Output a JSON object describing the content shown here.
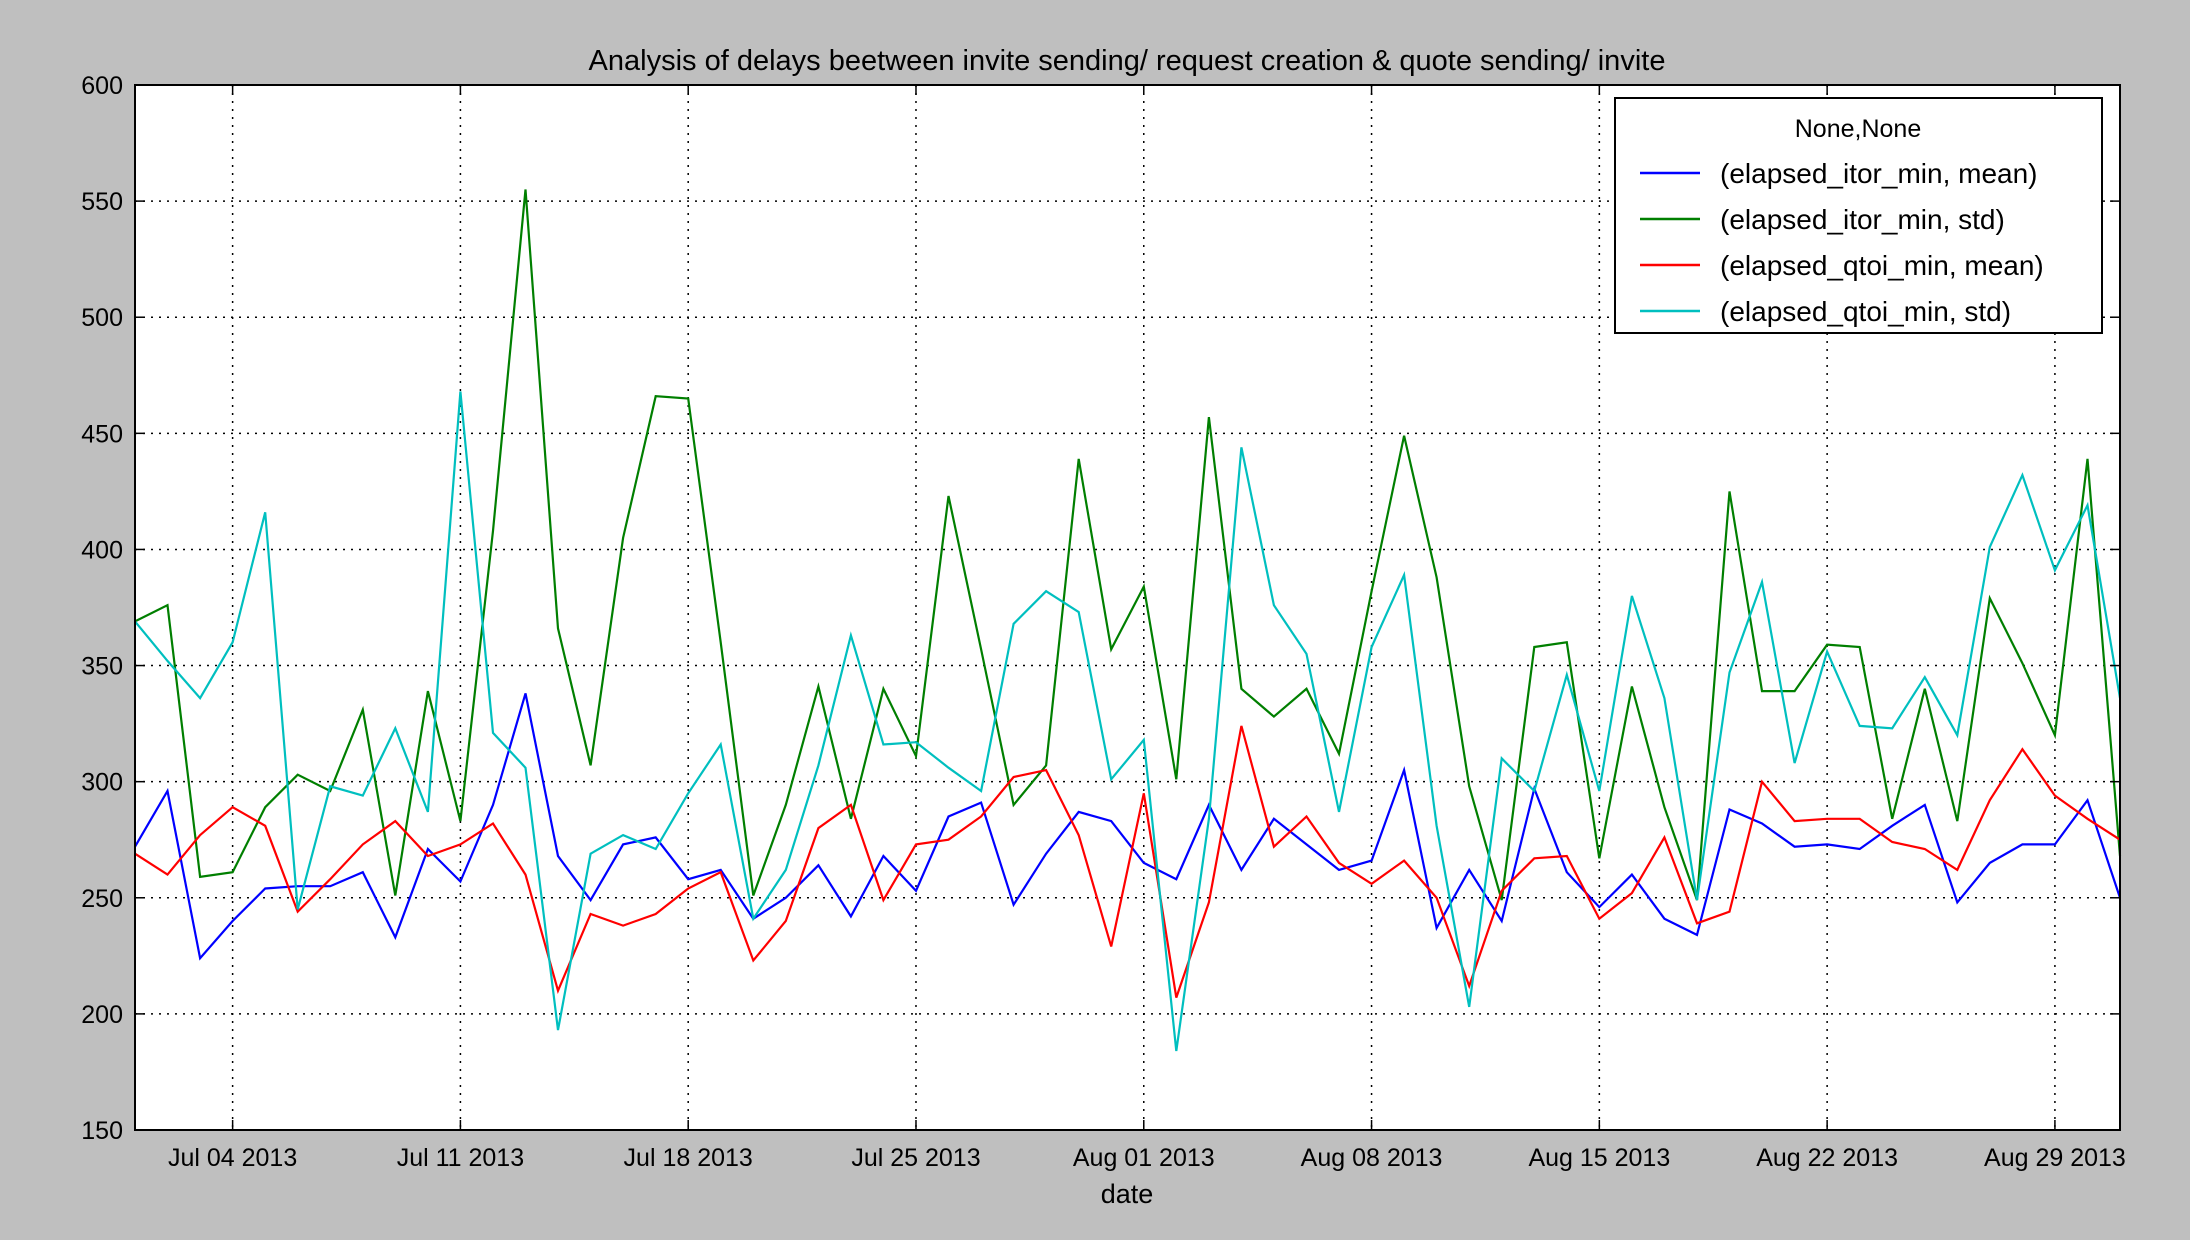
{
  "chart_data": {
    "type": "line",
    "title": "Analysis of delays beetween invite sending/ request creation & quote sending/ invite",
    "xlabel": "date",
    "ylabel": "",
    "x_start": "2013-07-01",
    "x_end": "2013-08-31",
    "xlim": [
      "2013-07-01",
      "2013-08-31"
    ],
    "ylim": [
      150,
      600
    ],
    "yticks": [
      150,
      200,
      250,
      300,
      350,
      400,
      450,
      500,
      550,
      600
    ],
    "xticks": [
      {
        "date": "2013-07-04",
        "label": "Jul 04 2013"
      },
      {
        "date": "2013-07-11",
        "label": "Jul 11 2013"
      },
      {
        "date": "2013-07-18",
        "label": "Jul 18 2013"
      },
      {
        "date": "2013-07-25",
        "label": "Jul 25 2013"
      },
      {
        "date": "2013-08-01",
        "label": "Aug 01 2013"
      },
      {
        "date": "2013-08-08",
        "label": "Aug 08 2013"
      },
      {
        "date": "2013-08-15",
        "label": "Aug 15 2013"
      },
      {
        "date": "2013-08-22",
        "label": "Aug 22 2013"
      },
      {
        "date": "2013-08-29",
        "label": "Aug 29 2013"
      }
    ],
    "grid": true,
    "legend": {
      "title": "None,None",
      "placement": "top-right"
    },
    "series": [
      {
        "name": "(elapsed_itor_min, mean)",
        "color": "#0000ff",
        "values": [
          272,
          296,
          224,
          240,
          254,
          255,
          255,
          261,
          233,
          271,
          257,
          290,
          338,
          268,
          249,
          273,
          276,
          258,
          262,
          241,
          250,
          264,
          242,
          268,
          253,
          285,
          291,
          247,
          269,
          287,
          283,
          265,
          258,
          290,
          262,
          284,
          273,
          262,
          266,
          305,
          237,
          262,
          240,
          297,
          261,
          246,
          260,
          241,
          234,
          288,
          282,
          272,
          273,
          271,
          281,
          290,
          248,
          265,
          273,
          273,
          292,
          250
        ]
      },
      {
        "name": "(elapsed_itor_min, std)",
        "color": "#007f00",
        "values": [
          369,
          376,
          259,
          261,
          289,
          303,
          296,
          331,
          251,
          339,
          283,
          408,
          555,
          366,
          307,
          405,
          466,
          465,
          360,
          251,
          290,
          341,
          284,
          340,
          311,
          423,
          357,
          290,
          307,
          439,
          357,
          384,
          301,
          457,
          340,
          328,
          340,
          312,
          382,
          449,
          388,
          298,
          249,
          358,
          360,
          267,
          341,
          289,
          249,
          425,
          339,
          339,
          359,
          358,
          284,
          340,
          283,
          379,
          351,
          320,
          439,
          268
        ]
      },
      {
        "name": "(elapsed_qtoi_min, mean)",
        "color": "#ff0000",
        "values": [
          269,
          260,
          277,
          289,
          281,
          244,
          258,
          273,
          283,
          268,
          273,
          282,
          260,
          210,
          243,
          238,
          243,
          254,
          261,
          223,
          240,
          280,
          290,
          249,
          273,
          275,
          285,
          302,
          305,
          277,
          229,
          295,
          207,
          248,
          324,
          272,
          285,
          265,
          256,
          266,
          250,
          212,
          253,
          267,
          268,
          241,
          252,
          276,
          239,
          244,
          300,
          283,
          284,
          284,
          274,
          271,
          262,
          292,
          314,
          294,
          284,
          275
        ]
      },
      {
        "name": "(elapsed_qtoi_min, std)",
        "color": "#00bfbf",
        "values": [
          369,
          352,
          336,
          360,
          416,
          245,
          298,
          294,
          323,
          287,
          468,
          321,
          306,
          193,
          269,
          277,
          271,
          295,
          316,
          241,
          262,
          307,
          363,
          316,
          317,
          306,
          296,
          368,
          382,
          373,
          301,
          318,
          184,
          284,
          444,
          376,
          355,
          287,
          358,
          389,
          281,
          203,
          310,
          296,
          346,
          296,
          380,
          336,
          249,
          347,
          386,
          308,
          356,
          324,
          323,
          345,
          320,
          401,
          432,
          391,
          419,
          336
        ]
      }
    ]
  }
}
